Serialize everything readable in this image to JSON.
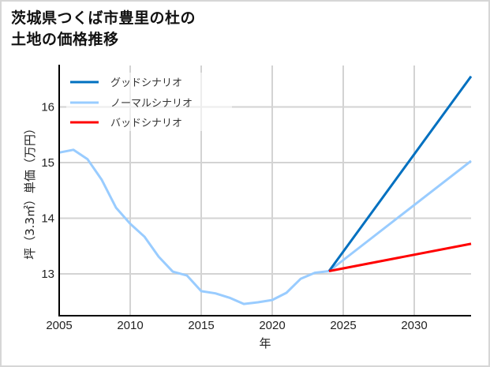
{
  "title_line1": "茨城県つくば市豊里の杜の",
  "title_line2": "土地の価格推移",
  "chart_data": {
    "type": "line",
    "title": "茨城県つくば市豊里の杜の土地の価格推移",
    "xlabel": "年",
    "ylabel": "坪（3.3㎡）単価（万円）",
    "xlim": [
      2005,
      2034
    ],
    "ylim": [
      12.25,
      16.75
    ],
    "xticks": [
      2005,
      2010,
      2015,
      2020,
      2025,
      2030
    ],
    "yticks": [
      13,
      14,
      15,
      16
    ],
    "grid": true,
    "legend_position": "upper left",
    "series": [
      {
        "name": "グッドシナリオ",
        "color": "#0070c0",
        "x": [
          2024,
          2034
        ],
        "values": [
          13.05,
          16.55
        ]
      },
      {
        "name": "ノーマルシナリオ",
        "color": "#99ccff",
        "x": [
          2005,
          2006,
          2007,
          2008,
          2009,
          2010,
          2011,
          2012,
          2013,
          2014,
          2015,
          2016,
          2017,
          2018,
          2019,
          2020,
          2021,
          2022,
          2023,
          2024,
          2034
        ],
        "values": [
          15.18,
          15.23,
          15.06,
          14.69,
          14.19,
          13.9,
          13.67,
          13.31,
          13.04,
          12.97,
          12.69,
          12.65,
          12.57,
          12.46,
          12.49,
          12.53,
          12.66,
          12.91,
          13.02,
          13.05,
          15.03
        ]
      },
      {
        "name": "バッドシナリオ",
        "color": "#ff0000",
        "x": [
          2024,
          2034
        ],
        "values": [
          13.05,
          13.54
        ]
      }
    ]
  },
  "legend": [
    {
      "label": "グッドシナリオ",
      "color": "#0070c0"
    },
    {
      "label": "ノーマルシナリオ",
      "color": "#99ccff"
    },
    {
      "label": "バッドシナリオ",
      "color": "#ff0000"
    }
  ],
  "axis": {
    "x_ticks": [
      "2005",
      "2010",
      "2015",
      "2020",
      "2025",
      "2030"
    ],
    "y_ticks": [
      "13",
      "14",
      "15",
      "16"
    ],
    "xlabel": "年",
    "ylabel": "坪（3.3㎡）単価（万円）"
  }
}
